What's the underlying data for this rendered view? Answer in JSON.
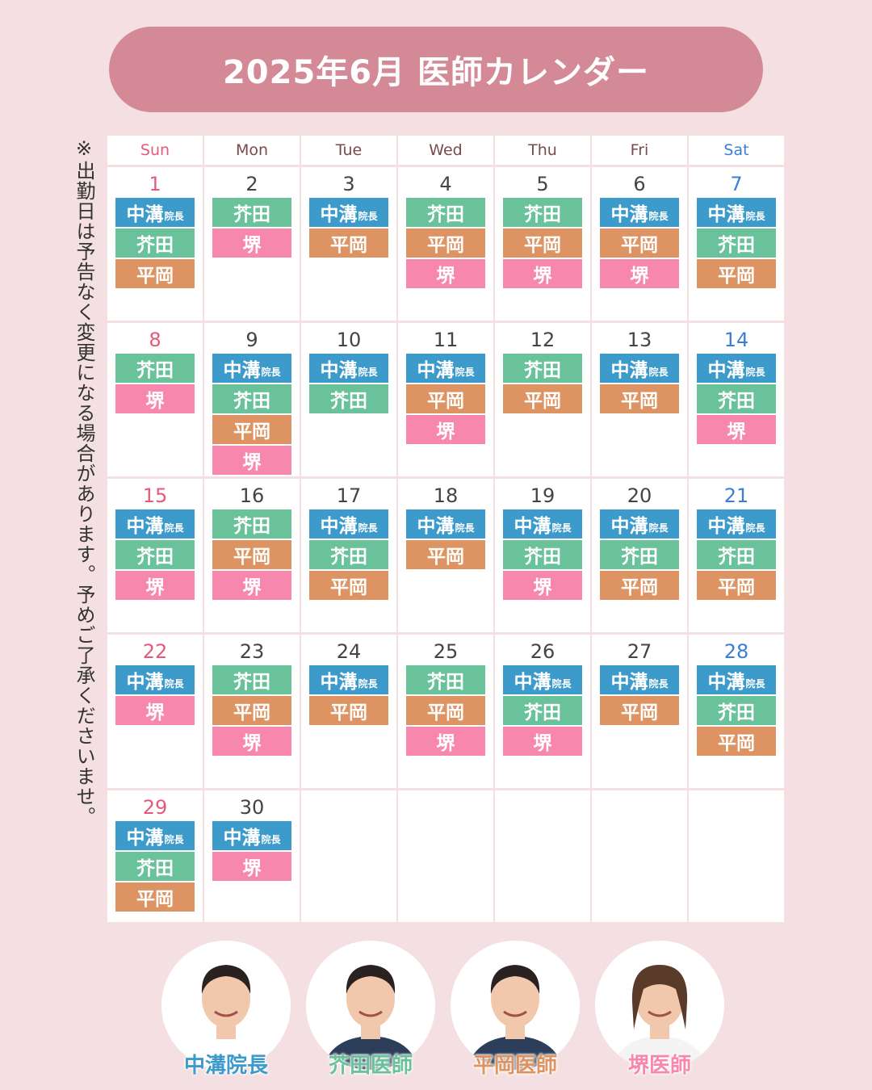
{
  "title": "2025年6月 医師カレンダー",
  "note": "※出勤日は予告なく変更になる場合があります。予めご了承くださいませ。",
  "colors": {
    "title_bg": "#d48a96",
    "nakamizo": "#3d9bcb",
    "akuta": "#6ac29a",
    "hiraoka": "#de9462",
    "sakai": "#f887ad",
    "sunday": "#e55a7a",
    "saturday": "#3b7fd4"
  },
  "weekdays": [
    "Sun",
    "Mon",
    "Tue",
    "Wed",
    "Thu",
    "Fri",
    "Sat"
  ],
  "badge_labels": {
    "nakamizo": "中溝",
    "nakamizo_sub": "院長",
    "akuta": "芥田",
    "hiraoka": "平岡",
    "sakai": "堺"
  },
  "weeks": [
    [
      {
        "day": "1",
        "docs": [
          "nakamizo",
          "akuta",
          "hiraoka"
        ]
      },
      {
        "day": "2",
        "docs": [
          "akuta",
          "sakai"
        ]
      },
      {
        "day": "3",
        "docs": [
          "nakamizo",
          "hiraoka"
        ]
      },
      {
        "day": "4",
        "docs": [
          "akuta",
          "hiraoka",
          "sakai"
        ]
      },
      {
        "day": "5",
        "docs": [
          "akuta",
          "hiraoka",
          "sakai"
        ]
      },
      {
        "day": "6",
        "docs": [
          "nakamizo",
          "hiraoka",
          "sakai"
        ]
      },
      {
        "day": "7",
        "docs": [
          "nakamizo",
          "akuta",
          "hiraoka"
        ]
      }
    ],
    [
      {
        "day": "8",
        "docs": [
          "akuta",
          "sakai"
        ]
      },
      {
        "day": "9",
        "docs": [
          "nakamizo",
          "akuta",
          "hiraoka",
          "sakai"
        ]
      },
      {
        "day": "10",
        "docs": [
          "nakamizo",
          "akuta"
        ]
      },
      {
        "day": "11",
        "docs": [
          "nakamizo",
          "hiraoka",
          "sakai"
        ]
      },
      {
        "day": "12",
        "docs": [
          "akuta",
          "hiraoka"
        ]
      },
      {
        "day": "13",
        "docs": [
          "nakamizo",
          "hiraoka"
        ]
      },
      {
        "day": "14",
        "docs": [
          "nakamizo",
          "akuta",
          "sakai"
        ]
      }
    ],
    [
      {
        "day": "15",
        "docs": [
          "nakamizo",
          "akuta",
          "sakai"
        ]
      },
      {
        "day": "16",
        "docs": [
          "akuta",
          "hiraoka",
          "sakai"
        ]
      },
      {
        "day": "17",
        "docs": [
          "nakamizo",
          "akuta",
          "hiraoka"
        ]
      },
      {
        "day": "18",
        "docs": [
          "nakamizo",
          "hiraoka"
        ]
      },
      {
        "day": "19",
        "docs": [
          "nakamizo",
          "akuta",
          "sakai"
        ]
      },
      {
        "day": "20",
        "docs": [
          "nakamizo",
          "akuta",
          "hiraoka"
        ]
      },
      {
        "day": "21",
        "docs": [
          "nakamizo",
          "akuta",
          "hiraoka"
        ]
      }
    ],
    [
      {
        "day": "22",
        "docs": [
          "nakamizo",
          "sakai"
        ]
      },
      {
        "day": "23",
        "docs": [
          "akuta",
          "hiraoka",
          "sakai"
        ]
      },
      {
        "day": "24",
        "docs": [
          "nakamizo",
          "hiraoka"
        ]
      },
      {
        "day": "25",
        "docs": [
          "akuta",
          "hiraoka",
          "sakai"
        ]
      },
      {
        "day": "26",
        "docs": [
          "nakamizo",
          "akuta",
          "sakai"
        ]
      },
      {
        "day": "27",
        "docs": [
          "nakamizo",
          "hiraoka"
        ]
      },
      {
        "day": "28",
        "docs": [
          "nakamizo",
          "akuta",
          "hiraoka"
        ]
      }
    ],
    [
      {
        "day": "29",
        "docs": [
          "nakamizo",
          "akuta",
          "hiraoka"
        ]
      },
      {
        "day": "30",
        "docs": [
          "nakamizo",
          "sakai"
        ]
      },
      {
        "day": "",
        "docs": []
      },
      {
        "day": "",
        "docs": []
      },
      {
        "day": "",
        "docs": []
      },
      {
        "day": "",
        "docs": []
      },
      {
        "day": "",
        "docs": []
      }
    ]
  ],
  "doctors": [
    {
      "key": "nakamizo",
      "name": "中溝院長"
    },
    {
      "key": "akuta",
      "name": "芥田医師"
    },
    {
      "key": "hiraoka",
      "name": "平岡医師"
    },
    {
      "key": "sakai",
      "name": "堺医師"
    }
  ]
}
